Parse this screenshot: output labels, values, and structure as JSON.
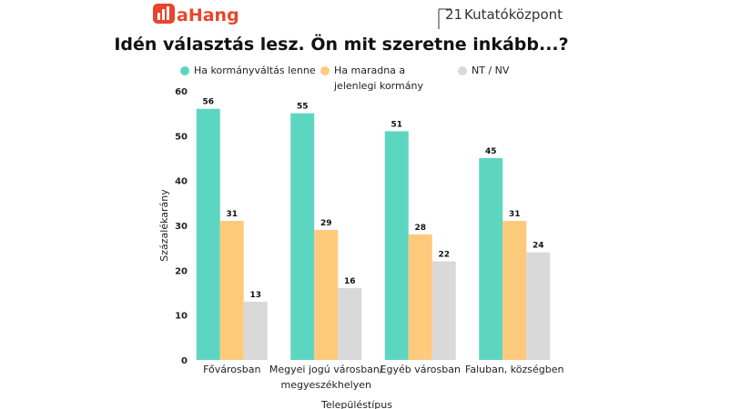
{
  "header": {
    "logo": "aHang",
    "brand_number": "21",
    "brand_name": "Kutatóközpont"
  },
  "chart_data": {
    "type": "bar",
    "title": "Idén választás lesz. Ön mit szeretne inkább...?",
    "x_label": "Településtípus",
    "y_label": "Százalékarány",
    "categories": [
      "Fővárosban",
      "Megyei jogú városban/ megyeszékhelyen",
      "Egyéb városban",
      "Faluban, községben"
    ],
    "series": [
      {
        "name": "Ha kormányváltás lenne",
        "color": "#5dd6c1",
        "values": [
          56,
          55,
          51,
          45
        ]
      },
      {
        "name": "Ha maradna a jelenlegi kormány",
        "color": "#fdca7c",
        "values": [
          31,
          29,
          28,
          31
        ]
      },
      {
        "name": "NT / NV",
        "color": "#d9d9d9",
        "values": [
          13,
          16,
          22,
          24
        ]
      }
    ],
    "ylim": [
      0,
      60
    ],
    "yticks": [
      0,
      10,
      20,
      30,
      40,
      50,
      60
    ],
    "grid": false
  }
}
